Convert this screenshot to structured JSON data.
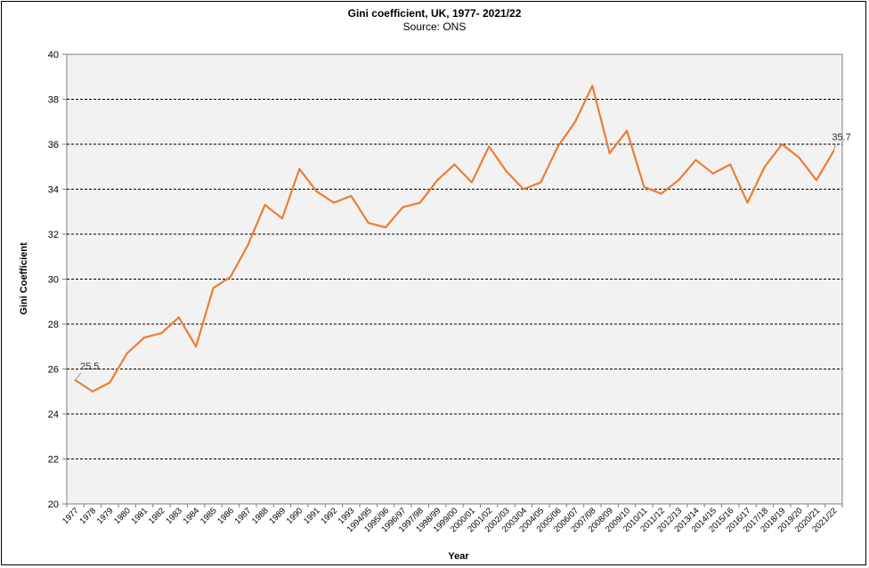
{
  "chart_data": {
    "type": "line",
    "title": "Gini coefficient, UK, 1977- 2021/22",
    "subtitle": "Source: ONS",
    "xlabel": "Year",
    "ylabel": "Gini Coefficient",
    "ylim": [
      20,
      40
    ],
    "yticks": [
      20,
      22,
      24,
      26,
      28,
      30,
      32,
      34,
      36,
      38,
      40
    ],
    "grid": true,
    "categories": [
      "1977",
      "1978",
      "1979",
      "1980",
      "1981",
      "1982",
      "1983",
      "1984",
      "1985",
      "1986",
      "1987",
      "1988",
      "1989",
      "1990",
      "1991",
      "1992",
      "1993",
      "1994/95",
      "1995/96",
      "1996/97",
      "1997/98",
      "1998/99",
      "1999/00",
      "2000/01",
      "2001/02",
      "2002/03",
      "2003/04",
      "2004/05",
      "2005/06",
      "2006/07",
      "2007/08",
      "2008/09",
      "2009/10",
      "2010/11",
      "2011/12",
      "2012/13",
      "2013/14",
      "2014/15",
      "2015/16",
      "2016/17",
      "2017/18",
      "2018/19",
      "2019/20",
      "2020/21",
      "2021/22"
    ],
    "series": [
      {
        "color": "#ED7D31",
        "values": [
          25.5,
          25.0,
          25.4,
          26.7,
          27.4,
          27.6,
          28.3,
          27.0,
          29.6,
          30.1,
          31.5,
          33.3,
          32.7,
          34.9,
          33.9,
          33.4,
          33.7,
          32.5,
          32.3,
          33.2,
          33.4,
          34.4,
          35.1,
          34.3,
          35.9,
          34.8,
          34.0,
          34.3,
          35.9,
          37.0,
          38.6,
          35.6,
          36.6,
          34.1,
          33.8,
          34.4,
          35.3,
          34.7,
          35.1,
          33.4,
          35.0,
          36.0,
          35.4,
          34.4,
          35.7
        ]
      }
    ],
    "data_labels": [
      {
        "category": "1977",
        "text": "25.5"
      },
      {
        "category": "2021/22",
        "text": "35.7"
      }
    ]
  }
}
